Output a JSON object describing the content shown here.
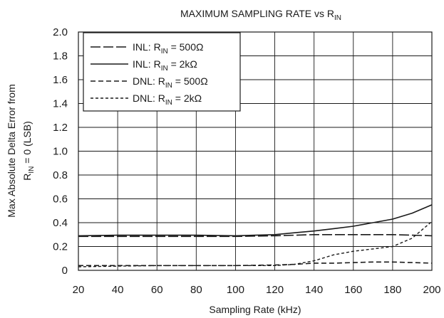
{
  "chart_data": {
    "type": "line",
    "title": {
      "main": "MAXIMUM SAMPLING RATE vs R",
      "sub": "IN"
    },
    "xlabel": "Sampling Rate (kHz)",
    "ylabel": {
      "line1": "Max Absolute Delta Error from",
      "line2_pre": "R",
      "line2_sub": "IN",
      "line2_post": " = 0 (LSB)"
    },
    "xlim": [
      20,
      200
    ],
    "ylim": [
      0,
      2.0
    ],
    "xticks": [
      20,
      40,
      60,
      80,
      100,
      120,
      140,
      160,
      180,
      200
    ],
    "yticks": [
      "0",
      "0.2",
      "0.4",
      "0.6",
      "0.8",
      "1.0",
      "1.2",
      "1.4",
      "1.6",
      "1.8",
      "2.0"
    ],
    "grid": true,
    "legend_position": "top-left",
    "series": [
      {
        "name": {
          "pre": "INL: R",
          "sub": "IN",
          "post": " = 500Ω"
        },
        "style": "long-dash",
        "points": [
          [
            20,
            0.285
          ],
          [
            40,
            0.285
          ],
          [
            60,
            0.285
          ],
          [
            80,
            0.285
          ],
          [
            100,
            0.285
          ],
          [
            120,
            0.29
          ],
          [
            140,
            0.3
          ],
          [
            150,
            0.3
          ],
          [
            160,
            0.3
          ],
          [
            170,
            0.3
          ],
          [
            180,
            0.3
          ],
          [
            190,
            0.295
          ],
          [
            200,
            0.29
          ]
        ]
      },
      {
        "name": {
          "pre": "INL: R",
          "sub": "IN",
          "post": " = 2kΩ"
        },
        "style": "solid",
        "points": [
          [
            20,
            0.29
          ],
          [
            40,
            0.295
          ],
          [
            60,
            0.295
          ],
          [
            80,
            0.295
          ],
          [
            100,
            0.29
          ],
          [
            110,
            0.295
          ],
          [
            120,
            0.3
          ],
          [
            130,
            0.315
          ],
          [
            140,
            0.33
          ],
          [
            150,
            0.35
          ],
          [
            160,
            0.37
          ],
          [
            170,
            0.4
          ],
          [
            180,
            0.43
          ],
          [
            190,
            0.48
          ],
          [
            200,
            0.55
          ]
        ]
      },
      {
        "name": {
          "pre": "DNL: R",
          "sub": "IN",
          "post": " = 500Ω"
        },
        "style": "dash",
        "points": [
          [
            20,
            0.04
          ],
          [
            40,
            0.04
          ],
          [
            60,
            0.04
          ],
          [
            80,
            0.04
          ],
          [
            100,
            0.04
          ],
          [
            120,
            0.045
          ],
          [
            130,
            0.05
          ],
          [
            140,
            0.06
          ],
          [
            150,
            0.06
          ],
          [
            160,
            0.065
          ],
          [
            170,
            0.07
          ],
          [
            180,
            0.07
          ],
          [
            190,
            0.065
          ],
          [
            200,
            0.06
          ]
        ]
      },
      {
        "name": {
          "pre": "DNL: R",
          "sub": "IN",
          "post": " = 2kΩ"
        },
        "style": "short-dash",
        "points": [
          [
            20,
            0.03
          ],
          [
            40,
            0.035
          ],
          [
            60,
            0.04
          ],
          [
            80,
            0.04
          ],
          [
            100,
            0.04
          ],
          [
            120,
            0.04
          ],
          [
            130,
            0.05
          ],
          [
            140,
            0.08
          ],
          [
            150,
            0.13
          ],
          [
            160,
            0.16
          ],
          [
            170,
            0.18
          ],
          [
            180,
            0.2
          ],
          [
            190,
            0.27
          ],
          [
            200,
            0.41
          ]
        ]
      }
    ]
  }
}
